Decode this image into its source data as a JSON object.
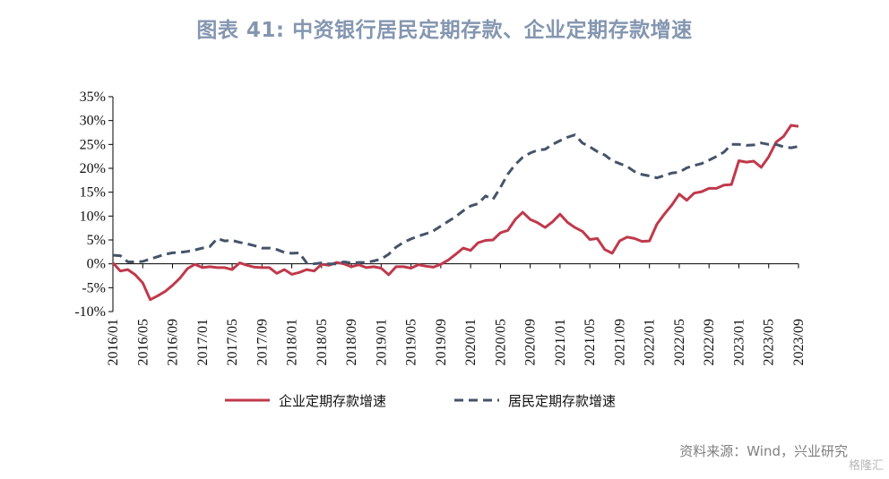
{
  "title": "图表 41: 中资银行居民定期存款、企业定期存款增速",
  "source": "资料来源：Wind，兴业研究",
  "watermark": "格隆汇",
  "colors": {
    "enterprise": "#c0394b",
    "resident": "#44546a",
    "title": "#8496b0",
    "axis": "#000000"
  },
  "chart_data": {
    "type": "line",
    "title": "图表 41: 中资银行居民定期存款、企业定期存款增速",
    "xlabel": "",
    "ylabel": "",
    "ylim": [
      -10,
      35
    ],
    "y_ticks": [
      "35%",
      "30%",
      "25%",
      "20%",
      "15%",
      "10%",
      "5%",
      "0%",
      "-5%",
      "-10%"
    ],
    "y_tick_values": [
      35,
      30,
      25,
      20,
      15,
      10,
      5,
      0,
      -5,
      -10
    ],
    "x_start": "2016/01",
    "x_tick_labels": [
      "2016/01",
      "2016/05",
      "2016/09",
      "2017/01",
      "2017/05",
      "2017/09",
      "2018/01",
      "2018/05",
      "2018/09",
      "2019/01",
      "2019/05",
      "2019/09",
      "2020/01",
      "2020/05",
      "2020/09",
      "2021/01",
      "2021/05",
      "2021/09",
      "2022/01",
      "2022/05",
      "2022/09",
      "2023/01",
      "2023/05",
      "2023/09"
    ],
    "grid": false,
    "legend_position": "bottom",
    "series": [
      {
        "name": "企业定期存款增速",
        "style": "solid",
        "color": "#c0394b",
        "values": [
          0.2,
          -1.5,
          -1.2,
          -2.3,
          -4.0,
          -7.5,
          -6.7,
          -5.8,
          -4.5,
          -3.0,
          -1.0,
          -0.1,
          -0.8,
          -0.6,
          -0.8,
          -0.8,
          -1.2,
          0.2,
          -0.3,
          -0.7,
          -0.8,
          -0.8,
          -2.0,
          -1.2,
          -2.2,
          -1.8,
          -1.2,
          -1.5,
          -0.1,
          -0.3,
          0.3,
          0.0,
          -0.6,
          -0.2,
          -0.8,
          -0.6,
          -0.9,
          -2.3,
          -0.6,
          -0.6,
          -0.9,
          -0.2,
          -0.5,
          -0.7,
          -0.1,
          0.8,
          2.0,
          3.3,
          2.8,
          4.4,
          4.9,
          5.0,
          6.5,
          7.0,
          9.3,
          10.8,
          9.3,
          8.6,
          7.6,
          8.8,
          10.4,
          8.7,
          7.6,
          6.8,
          5.1,
          5.3,
          3.0,
          2.2,
          4.8,
          5.6,
          5.3,
          4.7,
          4.8,
          8.3,
          10.4,
          12.3,
          14.6,
          13.3,
          14.8,
          15.1,
          15.8,
          15.8,
          16.5,
          16.6,
          21.6,
          21.3,
          21.5,
          20.2,
          22.4,
          25.5,
          26.7,
          29.0,
          28.8
        ]
      },
      {
        "name": "居民定期存款增速",
        "style": "dashed",
        "color": "#44546a",
        "values": [
          1.8,
          1.7,
          0.4,
          0.4,
          0.5,
          1.0,
          1.5,
          2.0,
          2.3,
          2.4,
          2.6,
          2.9,
          3.3,
          3.6,
          5.3,
          4.8,
          4.9,
          4.5,
          4.2,
          3.8,
          3.3,
          3.3,
          3.0,
          2.4,
          2.2,
          2.3,
          0.2,
          0.0,
          0.2,
          0.0,
          0.0,
          0.4,
          0.2,
          0.3,
          0.3,
          0.6,
          1.0,
          2.0,
          3.5,
          4.5,
          5.2,
          5.8,
          6.3,
          6.9,
          7.9,
          8.9,
          9.9,
          11.1,
          12.1,
          12.6,
          14.2,
          13.5,
          16.0,
          18.8,
          20.8,
          22.3,
          23.2,
          23.8,
          24.0,
          25.0,
          25.8,
          26.5,
          27.0,
          25.3,
          24.5,
          23.5,
          22.8,
          21.6,
          21.0,
          20.4,
          19.3,
          18.7,
          18.4,
          18.0,
          18.5,
          19.0,
          19.2,
          20.1,
          20.6,
          21.0,
          21.7,
          22.5,
          23.4,
          25.0,
          25.0,
          24.8,
          24.9,
          25.3,
          25.0,
          25.0,
          24.5,
          24.3,
          24.6
        ]
      }
    ]
  }
}
